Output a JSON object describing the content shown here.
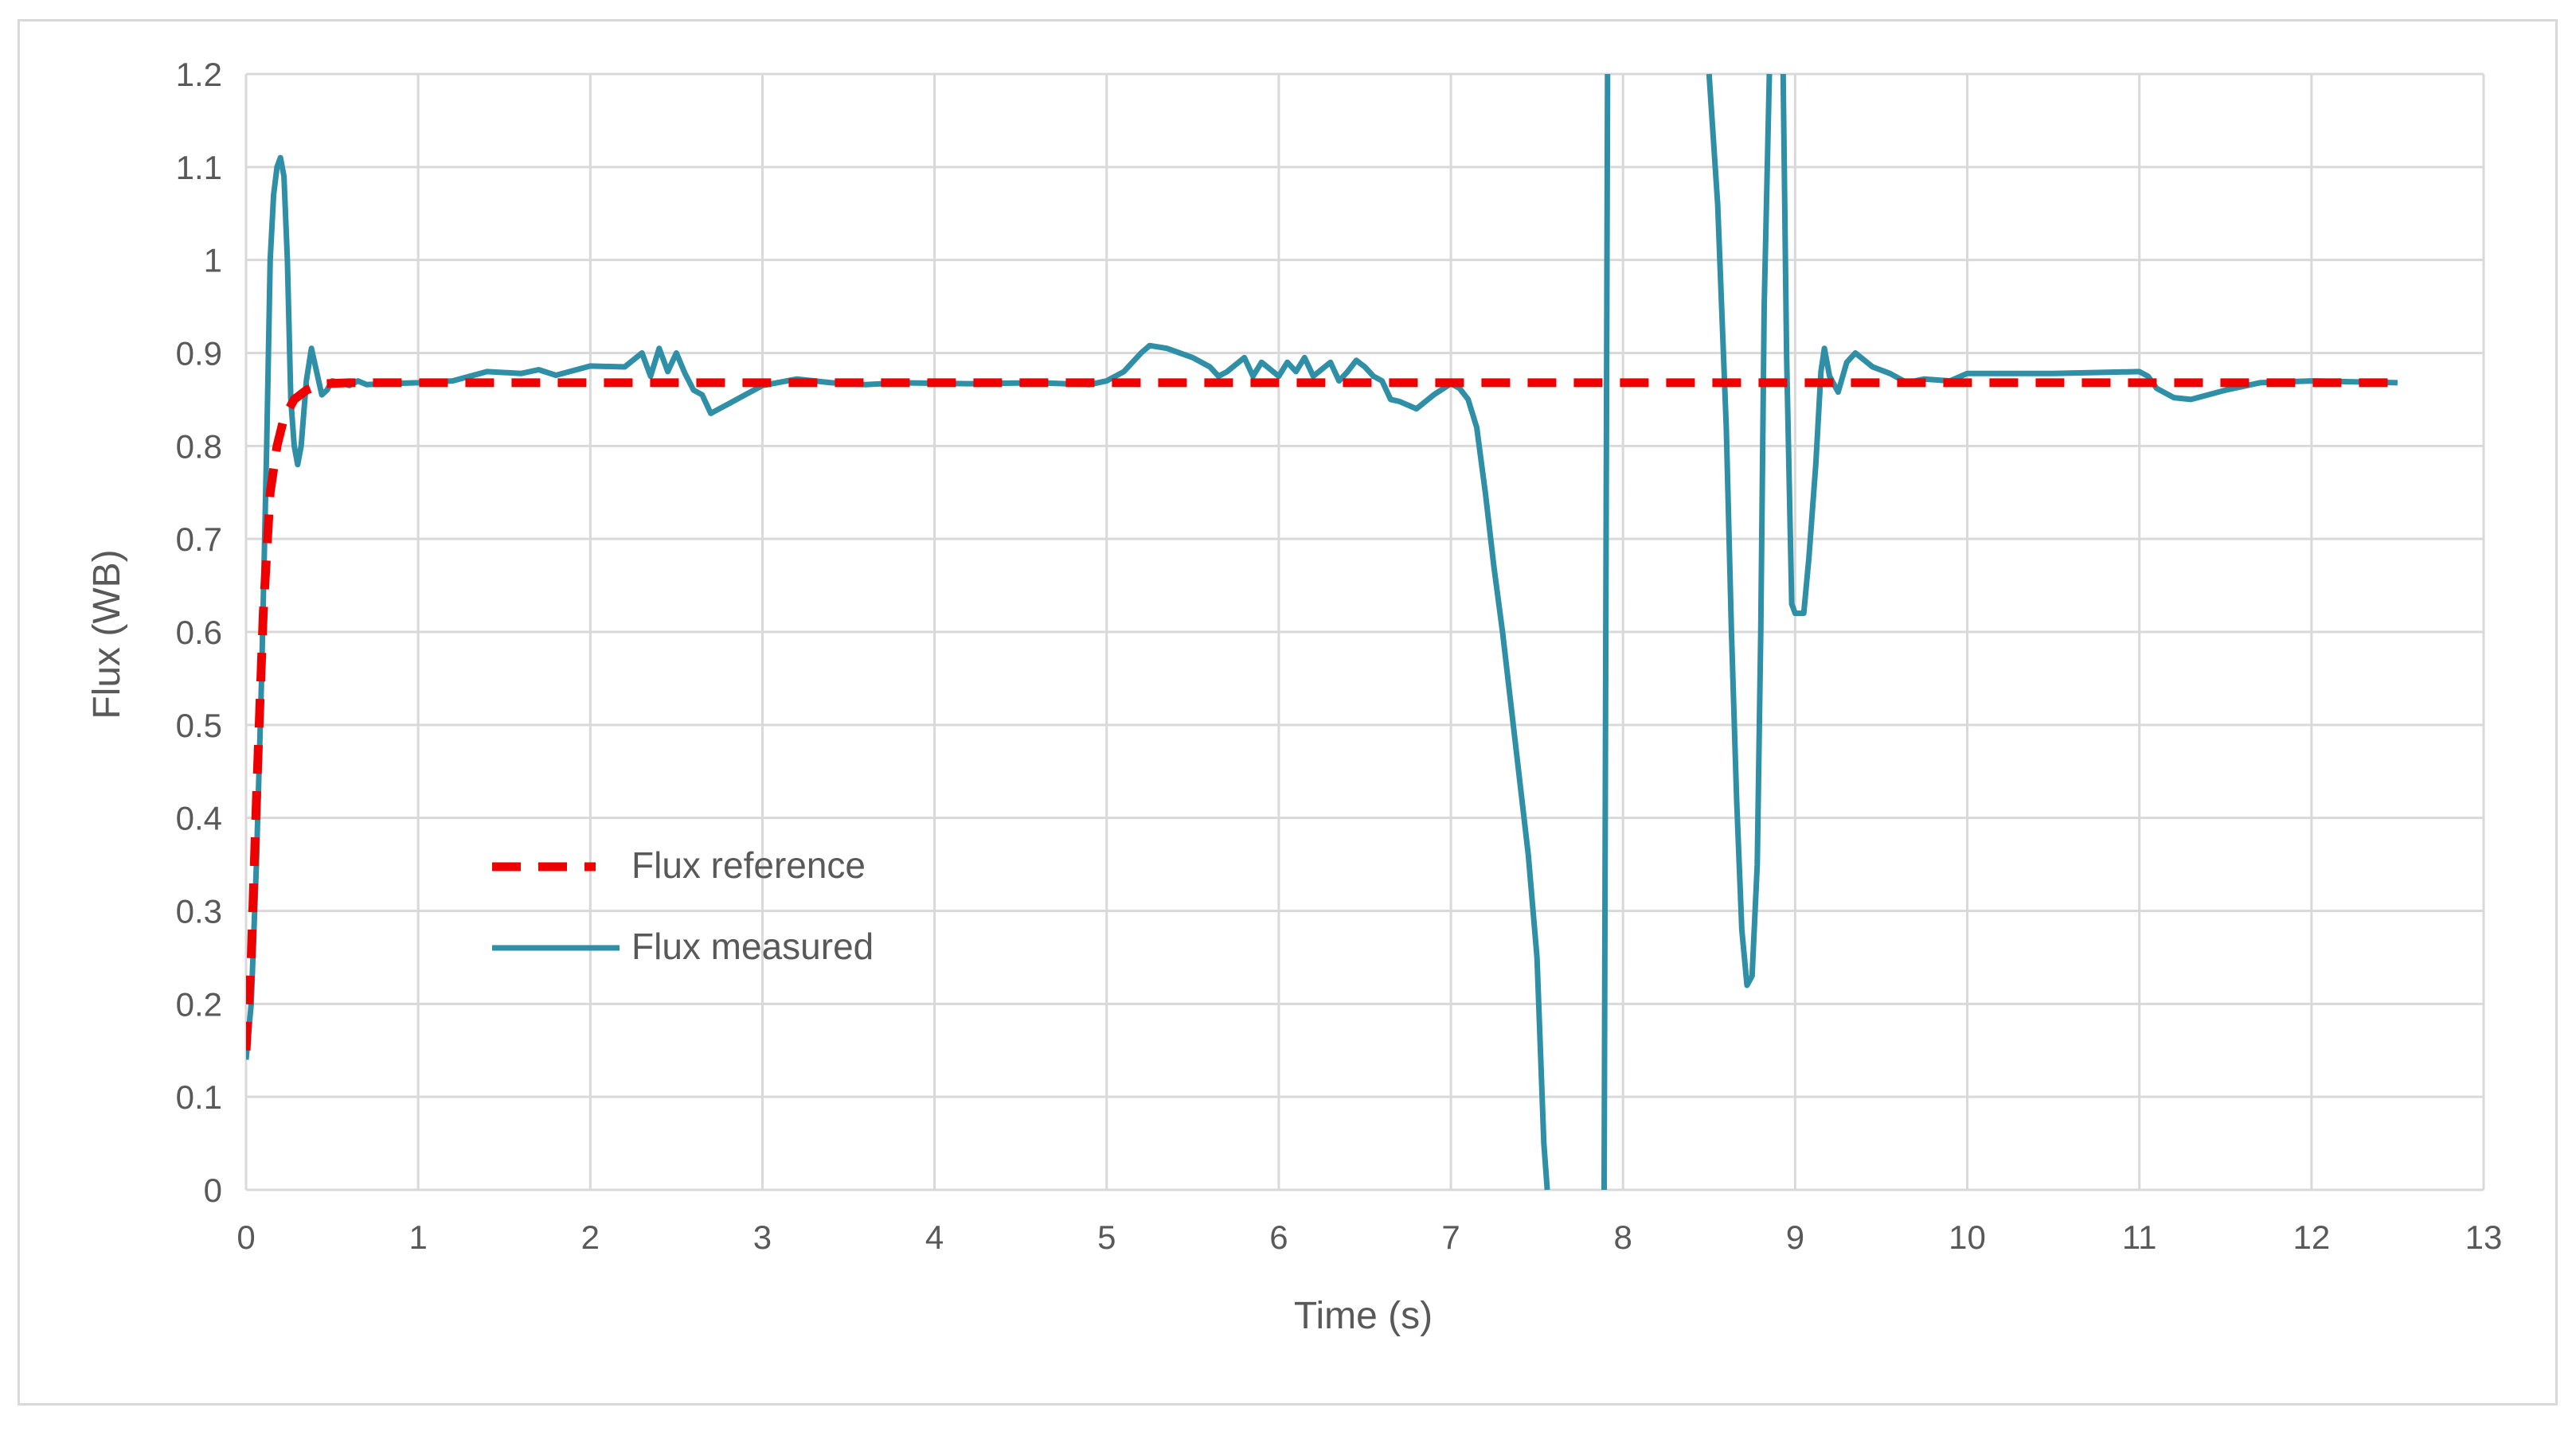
{
  "chart_data": {
    "type": "line",
    "title": "",
    "xlabel": "Time (s)",
    "ylabel": "Flux (WB)",
    "xlim": [
      0,
      13
    ],
    "ylim": [
      0,
      1.2
    ],
    "x_ticks": [
      "0",
      "1",
      "2",
      "3",
      "4",
      "5",
      "6",
      "7",
      "8",
      "9",
      "10",
      "11",
      "12",
      "13"
    ],
    "y_ticks": [
      "0",
      "0.1",
      "0.2",
      "0.3",
      "0.4",
      "0.5",
      "0.6",
      "0.7",
      "0.8",
      "0.9",
      "1",
      "1.1",
      "1.2"
    ],
    "grid": true,
    "legend_position": "inside-lower-left",
    "colors": {
      "reference": "#ee0000",
      "measured": "#2e8fa6",
      "grid": "#d9d9d9"
    },
    "series": [
      {
        "name": "Flux reference",
        "style": "dashed",
        "color": "#ee0000",
        "points": [
          [
            0.0,
            0.15
          ],
          [
            0.03,
            0.25
          ],
          [
            0.06,
            0.42
          ],
          [
            0.1,
            0.62
          ],
          [
            0.14,
            0.75
          ],
          [
            0.18,
            0.8
          ],
          [
            0.22,
            0.83
          ],
          [
            0.28,
            0.85
          ],
          [
            0.35,
            0.86
          ],
          [
            0.45,
            0.867
          ],
          [
            0.6,
            0.868
          ],
          [
            1.0,
            0.868
          ],
          [
            3.0,
            0.868
          ],
          [
            6.0,
            0.868
          ],
          [
            9.0,
            0.868
          ],
          [
            12.5,
            0.868
          ]
        ]
      },
      {
        "name": "Flux measured",
        "style": "solid",
        "color": "#2e8fa6",
        "points": [
          [
            0.0,
            0.14
          ],
          [
            0.03,
            0.2
          ],
          [
            0.06,
            0.35
          ],
          [
            0.09,
            0.55
          ],
          [
            0.12,
            0.8
          ],
          [
            0.14,
            1.0
          ],
          [
            0.16,
            1.07
          ],
          [
            0.18,
            1.1
          ],
          [
            0.2,
            1.11
          ],
          [
            0.22,
            1.09
          ],
          [
            0.24,
            1.0
          ],
          [
            0.26,
            0.85
          ],
          [
            0.28,
            0.8
          ],
          [
            0.3,
            0.78
          ],
          [
            0.32,
            0.8
          ],
          [
            0.35,
            0.87
          ],
          [
            0.38,
            0.905
          ],
          [
            0.41,
            0.88
          ],
          [
            0.44,
            0.855
          ],
          [
            0.47,
            0.86
          ],
          [
            0.5,
            0.87
          ],
          [
            0.55,
            0.868
          ],
          [
            0.6,
            0.865
          ],
          [
            0.65,
            0.87
          ],
          [
            0.7,
            0.866
          ],
          [
            0.8,
            0.867
          ],
          [
            1.0,
            0.868
          ],
          [
            1.2,
            0.87
          ],
          [
            1.4,
            0.88
          ],
          [
            1.6,
            0.878
          ],
          [
            1.7,
            0.882
          ],
          [
            1.8,
            0.876
          ],
          [
            2.0,
            0.886
          ],
          [
            2.2,
            0.885
          ],
          [
            2.3,
            0.9
          ],
          [
            2.35,
            0.875
          ],
          [
            2.4,
            0.905
          ],
          [
            2.45,
            0.88
          ],
          [
            2.5,
            0.9
          ],
          [
            2.55,
            0.878
          ],
          [
            2.6,
            0.86
          ],
          [
            2.65,
            0.855
          ],
          [
            2.7,
            0.835
          ],
          [
            2.75,
            0.84
          ],
          [
            2.8,
            0.845
          ],
          [
            2.9,
            0.855
          ],
          [
            3.0,
            0.865
          ],
          [
            3.2,
            0.872
          ],
          [
            3.4,
            0.868
          ],
          [
            3.6,
            0.866
          ],
          [
            3.8,
            0.868
          ],
          [
            4.2,
            0.867
          ],
          [
            4.6,
            0.868
          ],
          [
            4.9,
            0.866
          ],
          [
            5.0,
            0.87
          ],
          [
            5.1,
            0.88
          ],
          [
            5.2,
            0.9
          ],
          [
            5.25,
            0.908
          ],
          [
            5.35,
            0.905
          ],
          [
            5.5,
            0.895
          ],
          [
            5.6,
            0.885
          ],
          [
            5.65,
            0.875
          ],
          [
            5.7,
            0.88
          ],
          [
            5.8,
            0.895
          ],
          [
            5.85,
            0.875
          ],
          [
            5.9,
            0.89
          ],
          [
            6.0,
            0.875
          ],
          [
            6.05,
            0.89
          ],
          [
            6.1,
            0.88
          ],
          [
            6.15,
            0.895
          ],
          [
            6.2,
            0.875
          ],
          [
            6.3,
            0.89
          ],
          [
            6.35,
            0.87
          ],
          [
            6.4,
            0.88
          ],
          [
            6.45,
            0.892
          ],
          [
            6.5,
            0.885
          ],
          [
            6.55,
            0.875
          ],
          [
            6.6,
            0.87
          ],
          [
            6.65,
            0.85
          ],
          [
            6.7,
            0.848
          ],
          [
            6.8,
            0.84
          ],
          [
            6.9,
            0.855
          ],
          [
            7.0,
            0.867
          ],
          [
            7.05,
            0.862
          ],
          [
            7.1,
            0.85
          ],
          [
            7.15,
            0.82
          ],
          [
            7.2,
            0.75
          ],
          [
            7.25,
            0.67
          ],
          [
            7.3,
            0.6
          ],
          [
            7.35,
            0.52
          ],
          [
            7.4,
            0.44
          ],
          [
            7.45,
            0.36
          ],
          [
            7.5,
            0.25
          ],
          [
            7.52,
            0.15
          ],
          [
            7.54,
            0.05
          ],
          [
            7.56,
            0.0
          ]
        ]
      },
      {
        "name": "",
        "style": "solid",
        "color": "#2e8fa6",
        "points": [
          [
            7.89,
            0.0
          ],
          [
            7.9,
            0.6
          ],
          [
            7.91,
            1.2
          ]
        ]
      },
      {
        "name": "",
        "style": "solid",
        "color": "#2e8fa6",
        "points": [
          [
            8.5,
            1.2
          ],
          [
            8.55,
            1.06
          ],
          [
            8.6,
            0.82
          ],
          [
            8.63,
            0.6
          ],
          [
            8.66,
            0.42
          ],
          [
            8.69,
            0.28
          ],
          [
            8.72,
            0.22
          ],
          [
            8.75,
            0.23
          ],
          [
            8.78,
            0.35
          ],
          [
            8.8,
            0.6
          ],
          [
            8.82,
            0.95
          ],
          [
            8.85,
            1.2
          ]
        ]
      },
      {
        "name": "",
        "style": "solid",
        "color": "#2e8fa6",
        "points": [
          [
            8.93,
            1.2
          ],
          [
            8.95,
            0.9
          ],
          [
            8.98,
            0.63
          ],
          [
            9.0,
            0.62
          ],
          [
            9.05,
            0.62
          ],
          [
            9.08,
            0.68
          ],
          [
            9.12,
            0.78
          ],
          [
            9.15,
            0.88
          ],
          [
            9.17,
            0.905
          ],
          [
            9.2,
            0.875
          ],
          [
            9.25,
            0.858
          ],
          [
            9.3,
            0.89
          ],
          [
            9.35,
            0.9
          ],
          [
            9.45,
            0.885
          ],
          [
            9.55,
            0.878
          ],
          [
            9.65,
            0.868
          ],
          [
            9.75,
            0.872
          ],
          [
            9.9,
            0.87
          ],
          [
            10.0,
            0.878
          ],
          [
            10.5,
            0.878
          ],
          [
            11.0,
            0.88
          ],
          [
            11.05,
            0.875
          ],
          [
            11.1,
            0.862
          ],
          [
            11.2,
            0.852
          ],
          [
            11.3,
            0.85
          ],
          [
            11.5,
            0.86
          ],
          [
            11.7,
            0.868
          ],
          [
            12.0,
            0.87
          ],
          [
            12.5,
            0.868
          ]
        ]
      }
    ],
    "legend": [
      {
        "label": "Flux reference",
        "style": "dashed",
        "color": "#ee0000"
      },
      {
        "label": "Flux measured",
        "style": "solid",
        "color": "#2e8fa6"
      }
    ]
  }
}
